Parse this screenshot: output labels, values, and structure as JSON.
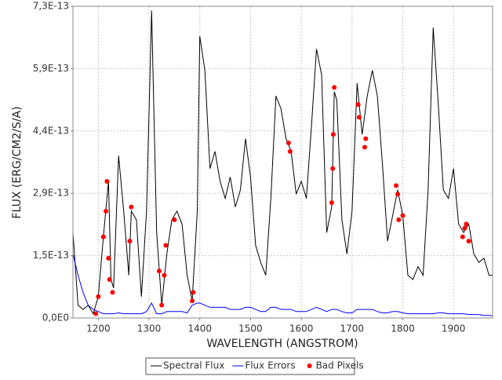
{
  "chart_data": {
    "type": "line",
    "x_label": "WAVELENGTH (ANGSTROM)",
    "y_label": "FLUX (ERG/CM2/S/A)",
    "xlim": [
      1150,
      1977
    ],
    "xticks": [
      1200,
      1300,
      1400,
      1500,
      1600,
      1700,
      1800,
      1900
    ],
    "ylim": [
      0,
      7.3e-13
    ],
    "yticks": [
      {
        "value": 0,
        "label": "0,0E0"
      },
      {
        "value": 1.46e-13,
        "label": "1,5E-13"
      },
      {
        "value": 2.92e-13,
        "label": "2,9E-13"
      },
      {
        "value": 4.38e-13,
        "label": "4,4E-13"
      },
      {
        "value": 5.84e-13,
        "label": "5,9E-13"
      },
      {
        "value": 7.3e-13,
        "label": "7,3E-13"
      }
    ],
    "grid": true,
    "legend": "bottom",
    "x": [
      1150,
      1160,
      1170,
      1180,
      1190,
      1200,
      1210,
      1220,
      1225,
      1230,
      1240,
      1250,
      1260,
      1265,
      1275,
      1285,
      1295,
      1305,
      1315,
      1325,
      1335,
      1345,
      1355,
      1365,
      1375,
      1385,
      1395,
      1400,
      1410,
      1420,
      1430,
      1440,
      1450,
      1460,
      1470,
      1480,
      1490,
      1500,
      1510,
      1520,
      1530,
      1540,
      1550,
      1560,
      1570,
      1580,
      1590,
      1600,
      1610,
      1620,
      1630,
      1640,
      1650,
      1660,
      1665,
      1670,
      1680,
      1690,
      1700,
      1710,
      1720,
      1730,
      1740,
      1750,
      1760,
      1770,
      1780,
      1790,
      1800,
      1810,
      1820,
      1830,
      1840,
      1850,
      1860,
      1870,
      1880,
      1890,
      1900,
      1910,
      1920,
      1930,
      1940,
      1950,
      1960,
      1970,
      1977
    ],
    "series": [
      {
        "name": "Spectral Flux",
        "color": "#000000",
        "values": [
          2e-13,
          3e-14,
          2e-14,
          3e-14,
          1e-14,
          5e-14,
          1.9e-13,
          3.2e-13,
          9e-14,
          7e-14,
          3.8e-13,
          2.5e-13,
          1e-13,
          2.5e-13,
          2.3e-13,
          5e-14,
          2.5e-13,
          7.2e-13,
          2e-13,
          3e-14,
          1.5e-13,
          2.3e-13,
          2.5e-13,
          2.2e-13,
          1e-13,
          4e-14,
          2.5e-13,
          6.6e-13,
          5.8e-13,
          3.5e-13,
          3.9e-13,
          3.2e-13,
          2.8e-13,
          3.3e-13,
          2.6e-13,
          3e-13,
          4.2e-13,
          3.3e-13,
          1.7e-13,
          1.3e-13,
          1e-13,
          2.8e-13,
          5.2e-13,
          4.9e-13,
          4.2e-13,
          3.9e-13,
          2.9e-13,
          3.2e-13,
          2.8e-13,
          4.5e-13,
          6.3e-13,
          5.7e-13,
          2e-13,
          2.6e-13,
          5.3e-13,
          5.1e-13,
          2.3e-13,
          1.5e-13,
          2.5e-13,
          5.5e-13,
          4.3e-13,
          5.2e-13,
          5.8e-13,
          5.2e-13,
          3.6e-13,
          1.8e-13,
          2.4e-13,
          3e-13,
          2.4e-13,
          1e-13,
          9e-14,
          1.2e-13,
          1e-13,
          3e-13,
          6.8e-13,
          5e-13,
          3e-13,
          2.8e-13,
          3.5e-13,
          2.2e-13,
          2e-13,
          2.2e-13,
          1.5e-13,
          1.3e-13,
          1.4e-13,
          1e-13,
          1e-13
        ]
      },
      {
        "name": "Flux Errors",
        "color": "#0000ff",
        "values": [
          1.5e-13,
          1e-13,
          6e-14,
          3e-14,
          2e-14,
          1.5e-14,
          1e-14,
          1e-14,
          1e-14,
          1e-14,
          1.2e-14,
          1e-14,
          1e-14,
          1e-14,
          1e-14,
          1e-14,
          1.5e-14,
          3.5e-14,
          1e-14,
          1e-14,
          1.5e-14,
          1.5e-14,
          1.5e-14,
          1.5e-14,
          1.2e-14,
          3e-14,
          3.5e-14,
          3.5e-14,
          3e-14,
          2.5e-14,
          2.5e-14,
          2.5e-14,
          2.5e-14,
          2e-14,
          2e-14,
          2e-14,
          2.5e-14,
          2.5e-14,
          2e-14,
          1.5e-14,
          1.5e-14,
          2.5e-14,
          2.5e-14,
          2e-14,
          2e-14,
          2e-14,
          1.5e-14,
          1.5e-14,
          1.5e-14,
          2e-14,
          2.5e-14,
          2e-14,
          1.5e-14,
          2e-14,
          2e-14,
          2e-14,
          1.5e-14,
          1.2e-14,
          1.2e-14,
          2e-14,
          2e-14,
          2e-14,
          2e-14,
          1.5e-14,
          1.2e-14,
          1.2e-14,
          1.5e-14,
          1.5e-14,
          1.2e-14,
          1e-14,
          1e-14,
          1e-14,
          1e-14,
          1e-14,
          1e-14,
          1.2e-14,
          1.2e-14,
          1e-14,
          1e-14,
          1e-14,
          1e-14,
          8e-15,
          8e-15,
          8e-15,
          6e-15,
          6e-15,
          5e-15
        ]
      },
      {
        "name": "Bad Pixels",
        "color": "#ff0000",
        "type": "scatter",
        "x": [
          1195,
          1200,
          1210,
          1215,
          1217,
          1220,
          1222,
          1228,
          1262,
          1265,
          1320,
          1325,
          1330,
          1333,
          1350,
          1385,
          1387,
          1575,
          1578,
          1660,
          1662,
          1663,
          1665,
          1712,
          1714,
          1725,
          1727,
          1787,
          1790,
          1792,
          1800,
          1918,
          1922,
          1925,
          1930
        ],
        "values": [
          1e-14,
          5e-14,
          1.9e-13,
          2.5e-13,
          3.2e-13,
          1.4e-13,
          9e-14,
          6e-14,
          1.8e-13,
          2.6e-13,
          1.1e-13,
          3e-14,
          1e-13,
          1.7e-13,
          2.3e-13,
          4e-14,
          6e-14,
          4.1e-13,
          3.9e-13,
          2.7e-13,
          3.5e-13,
          4.3e-13,
          5.4e-13,
          5e-13,
          4.7e-13,
          4e-13,
          4.2e-13,
          3.1e-13,
          2.9e-13,
          2.3e-13,
          2.4e-13,
          1.9e-13,
          2.1e-13,
          2.2e-13,
          1.8e-13
        ]
      }
    ]
  }
}
